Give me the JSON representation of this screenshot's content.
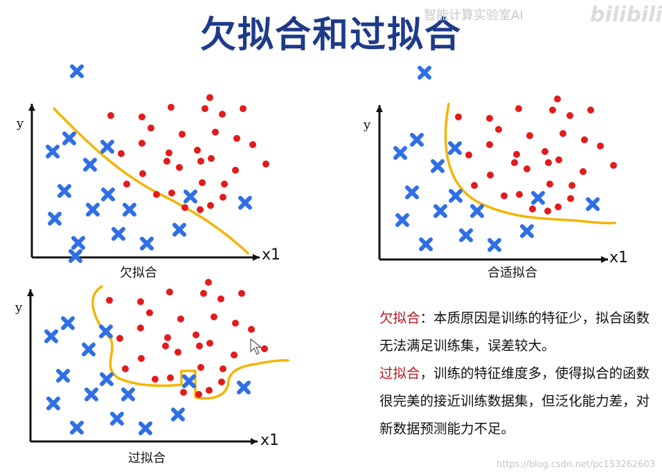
{
  "title": "欠拟合和过拟合",
  "watermark_top": "智能计算实验室AI",
  "logo_text": "bilibili",
  "panels": {
    "underfit": {
      "caption": "欠拟合",
      "y_label": "y",
      "x_label": "x1"
    },
    "good": {
      "caption": "合适拟合",
      "y_label": "y",
      "x_label": "x1"
    },
    "overfit": {
      "caption": "过拟合",
      "y_label": "y",
      "x_label": "x1"
    }
  },
  "description": {
    "underfit_term": "欠拟合",
    "underfit_text": "：本质原因是训练的特征少，拟合函数无法满足训练集，误差较大。",
    "overfit_term": "过拟合",
    "overfit_text": "，训练的特征维度多，使得拟合的函数很完美的接近训练数据集，但泛化能力差，对新数据预测能力不足。"
  },
  "footer_watermark": "https://blog.csdn.net/pc153262603",
  "colors": {
    "title": "#1e3a8a",
    "cross": "#2f6fe6",
    "dot": "#e31b1b",
    "curve": "#f4b400",
    "highlight": "#c0151b"
  }
}
